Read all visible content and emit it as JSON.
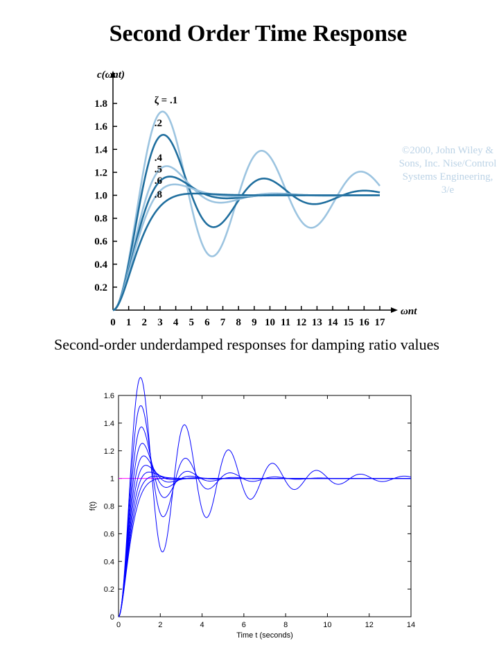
{
  "page": {
    "title": "Second Order Time Response",
    "copyright": "©2000, John Wiley & Sons, Inc. Nise/Control Systems Engineering, 3/e",
    "caption": "Second-order underdamped responses for damping ratio values"
  },
  "colors": {
    "light_blue": "#9cc4e0",
    "dark_blue": "#1f6e9e",
    "matlab_blue": "#0000ff",
    "reference_magenta": "#ff00ff"
  },
  "chart_data": [
    {
      "type": "line",
      "title": "",
      "ylabel": "c(ωnt)",
      "xlabel": "ωnt",
      "xlim": [
        0,
        17
      ],
      "ylim": [
        0,
        2.0
      ],
      "xticks": [
        0,
        1,
        2,
        3,
        4,
        5,
        6,
        7,
        8,
        9,
        10,
        11,
        12,
        13,
        14,
        15,
        16,
        17
      ],
      "yticks": [
        0.2,
        0.4,
        0.6,
        0.8,
        1.0,
        1.2,
        1.4,
        1.6,
        1.8
      ],
      "ytick_labels": [
        "0.2",
        "0.4",
        "0.6",
        "0.8",
        "1.0",
        "1.2",
        "1.4",
        "1.6",
        "1.8"
      ],
      "grid": false,
      "annotations": [
        {
          "text": "ζ = .1",
          "x": 3.3,
          "y": 1.8
        },
        {
          "text": ".2",
          "x": 3.3,
          "y": 1.6
        },
        {
          "text": ".4",
          "x": 3.3,
          "y": 1.3
        },
        {
          "text": ".5",
          "x": 3.3,
          "y": 1.2
        },
        {
          "text": ".6",
          "x": 3.3,
          "y": 1.1
        },
        {
          "text": ".8",
          "x": 3.3,
          "y": 0.98
        }
      ],
      "series": [
        {
          "zeta": 0.1,
          "color": "light_blue"
        },
        {
          "zeta": 0.2,
          "color": "dark_blue"
        },
        {
          "zeta": 0.4,
          "color": "light_blue"
        },
        {
          "zeta": 0.5,
          "color": "dark_blue"
        },
        {
          "zeta": 0.6,
          "color": "light_blue"
        },
        {
          "zeta": 0.8,
          "color": "dark_blue"
        }
      ]
    },
    {
      "type": "line",
      "title": "",
      "ylabel": "f(t)",
      "xlabel": "Time t  (seconds)",
      "xlim": [
        0,
        14
      ],
      "ylim": [
        0,
        1.6
      ],
      "xticks": [
        0,
        2,
        4,
        6,
        8,
        10,
        12,
        14
      ],
      "yticks": [
        0,
        0.2,
        0.4,
        0.6,
        0.8,
        1,
        1.2,
        1.4,
        1.6
      ],
      "ytick_labels": [
        "0",
        "0.2",
        "0.4",
        "0.6",
        "0.8",
        "1",
        "1.2",
        "1.4",
        "1.6"
      ],
      "grid": false,
      "omega_n": 3,
      "reference_line": 1,
      "series": [
        {
          "zeta": 0.1
        },
        {
          "zeta": 0.2
        },
        {
          "zeta": 0.3
        },
        {
          "zeta": 0.4
        },
        {
          "zeta": 0.5
        },
        {
          "zeta": 0.6
        },
        {
          "zeta": 0.7
        },
        {
          "zeta": 0.8
        },
        {
          "zeta": 0.9
        }
      ]
    }
  ]
}
